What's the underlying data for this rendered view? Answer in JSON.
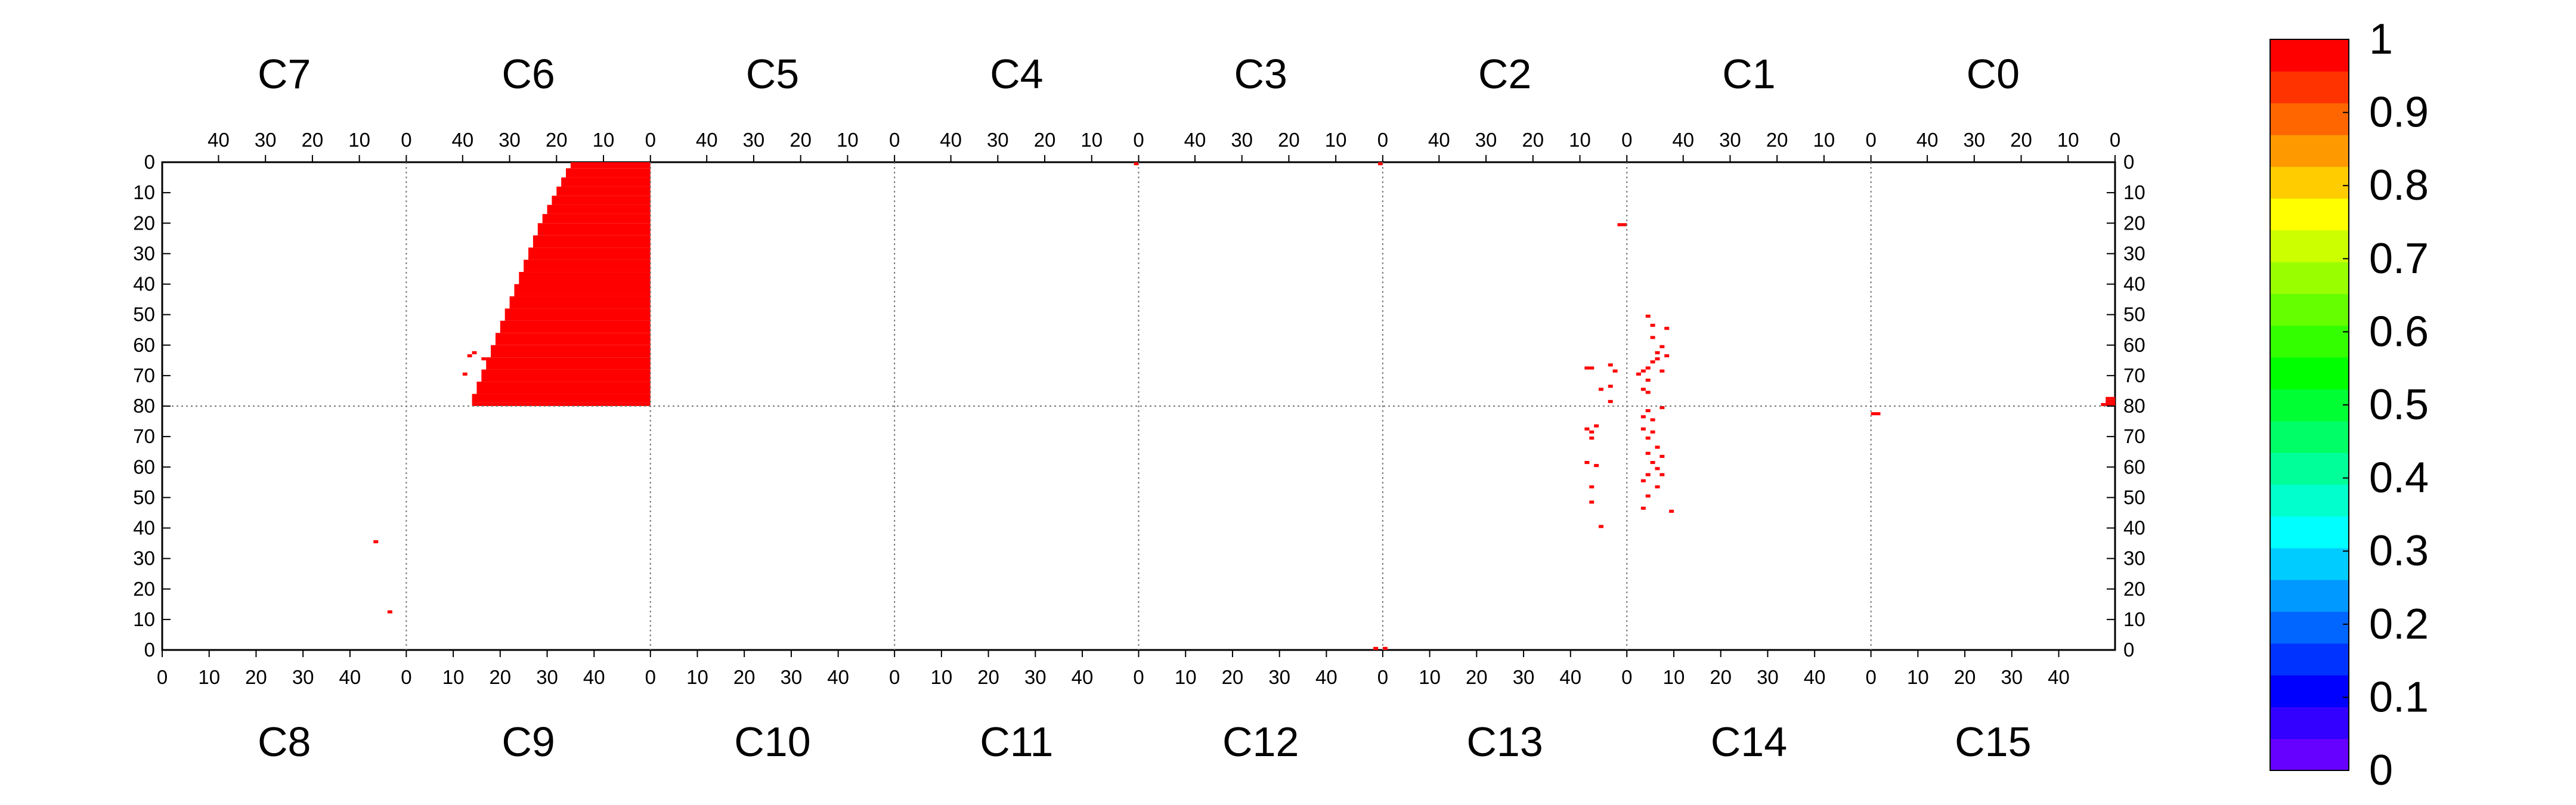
{
  "chart_data": {
    "type": "heatmap",
    "top_chip_labels": [
      "C7",
      "C6",
      "C5",
      "C4",
      "C3",
      "C2",
      "C1",
      "C0"
    ],
    "bottom_chip_labels": [
      "C8",
      "C9",
      "C10",
      "C11",
      "C12",
      "C13",
      "C14",
      "C15"
    ],
    "top_tick_labels": [
      "40",
      "30",
      "20",
      "10",
      "0"
    ],
    "bottom_tick_labels": [
      "0",
      "10",
      "20",
      "30",
      "40"
    ],
    "y_tick_labels_top_half": [
      "0",
      "10",
      "20",
      "30",
      "40",
      "50",
      "60",
      "70",
      "80"
    ],
    "y_tick_labels_bottom_half": [
      "70",
      "60",
      "50",
      "40",
      "30",
      "20",
      "10",
      "0"
    ],
    "chip_columns": 52,
    "chip_rows": 80,
    "x_range_per_chip": [
      0,
      52
    ],
    "y_range_per_half": [
      0,
      80
    ],
    "grid": "dotted chip boundaries",
    "colorbar": {
      "min": 0,
      "max": 1,
      "tick_labels": [
        "0",
        "0.1",
        "0.2",
        "0.3",
        "0.4",
        "0.5",
        "0.6",
        "0.7",
        "0.8",
        "0.9",
        "1"
      ],
      "colors": [
        "#6600ff",
        "#3300ff",
        "#0000ff",
        "#0033ff",
        "#0066ff",
        "#0099ff",
        "#00ccff",
        "#00ffff",
        "#00ffcc",
        "#00ff99",
        "#00ff66",
        "#00ff33",
        "#00ff00",
        "#33ff00",
        "#66ff00",
        "#99ff00",
        "#ccff00",
        "#ffff00",
        "#ffcc00",
        "#ff9900",
        "#ff6600",
        "#ff3300",
        "#ff0000"
      ],
      "placement": "right"
    },
    "cell_color": "#ff0000",
    "cells": [
      {
        "chip": "C6",
        "half": "top",
        "col": 1,
        "row": 3,
        "value": 1
      },
      {
        "chip": "C4",
        "half": "top",
        "col": 0,
        "row": 0,
        "value": 1
      },
      {
        "chip": "C3",
        "half": "top",
        "col": 0,
        "row": 0,
        "value": 1
      },
      {
        "chip": "C2",
        "half": "top",
        "col": 0,
        "row": 20,
        "value": 1
      },
      {
        "chip": "C2",
        "half": "top",
        "col": 1,
        "row": 20,
        "value": 1
      },
      {
        "chip": "C2",
        "half": "top",
        "col": 8,
        "row": 67
      },
      {
        "chip": "C2",
        "half": "top",
        "col": 7,
        "row": 67
      },
      {
        "chip": "C2",
        "half": "top",
        "col": 3,
        "row": 66
      },
      {
        "chip": "C2",
        "half": "top",
        "col": 2,
        "row": 68
      },
      {
        "chip": "C2",
        "half": "top",
        "col": 3,
        "row": 73
      },
      {
        "chip": "C2",
        "half": "top",
        "col": 5,
        "row": 74
      },
      {
        "chip": "C2",
        "half": "top",
        "col": 3,
        "row": 78
      },
      {
        "chip": "C1",
        "half": "top",
        "col": 47,
        "row": 50
      },
      {
        "chip": "C1",
        "half": "top",
        "col": 46,
        "row": 53
      },
      {
        "chip": "C1",
        "half": "top",
        "col": 43,
        "row": 54
      },
      {
        "chip": "C1",
        "half": "top",
        "col": 46,
        "row": 57
      },
      {
        "chip": "C1",
        "half": "top",
        "col": 44,
        "row": 60
      },
      {
        "chip": "C1",
        "half": "top",
        "col": 45,
        "row": 62
      },
      {
        "chip": "C1",
        "half": "top",
        "col": 43,
        "row": 63
      },
      {
        "chip": "C1",
        "half": "top",
        "col": 45,
        "row": 64
      },
      {
        "chip": "C1",
        "half": "top",
        "col": 46,
        "row": 65
      },
      {
        "chip": "C1",
        "half": "top",
        "col": 47,
        "row": 67
      },
      {
        "chip": "C1",
        "half": "top",
        "col": 44,
        "row": 68
      },
      {
        "chip": "C1",
        "half": "top",
        "col": 48,
        "row": 68
      },
      {
        "chip": "C1",
        "half": "top",
        "col": 49,
        "row": 69
      },
      {
        "chip": "C1",
        "half": "top",
        "col": 47,
        "row": 71
      },
      {
        "chip": "C1",
        "half": "top",
        "col": 48,
        "row": 74
      },
      {
        "chip": "C1",
        "half": "top",
        "col": 47,
        "row": 75
      },
      {
        "chip": "C0",
        "half": "top",
        "col": 0,
        "row": 77,
        "value": 1
      },
      {
        "chip": "C0",
        "half": "top",
        "col": 1,
        "row": 77,
        "value": 1
      },
      {
        "chip": "C0",
        "half": "top",
        "col": 0,
        "row": 78,
        "value": 1
      },
      {
        "chip": "C0",
        "half": "top",
        "col": 1,
        "row": 78,
        "value": 1
      },
      {
        "chip": "C0",
        "half": "top",
        "col": 0,
        "row": 79,
        "value": 1
      },
      {
        "chip": "C0",
        "half": "top",
        "col": 1,
        "row": 79,
        "value": 1
      },
      {
        "chip": "C0",
        "half": "top",
        "col": 2,
        "row": 79,
        "value": 1
      },
      {
        "chip": "C8",
        "half": "bottom",
        "col": 45,
        "row": 35,
        "value": 1
      },
      {
        "chip": "C8",
        "half": "bottom",
        "col": 48,
        "row": 12,
        "value": 1
      },
      {
        "chip": "C12",
        "half": "bottom",
        "col": 50,
        "row": 0,
        "value": 1
      },
      {
        "chip": "C13",
        "half": "bottom",
        "col": 0,
        "row": 0,
        "value": 1
      },
      {
        "chip": "C13",
        "half": "bottom",
        "col": 43,
        "row": 72,
        "value": 1
      },
      {
        "chip": "C13",
        "half": "bottom",
        "col": 45,
        "row": 73,
        "value": 1
      },
      {
        "chip": "C13",
        "half": "bottom",
        "col": 44,
        "row": 71,
        "value": 1
      },
      {
        "chip": "C13",
        "half": "bottom",
        "col": 44,
        "row": 69,
        "value": 1
      },
      {
        "chip": "C13",
        "half": "bottom",
        "col": 43,
        "row": 61,
        "value": 1
      },
      {
        "chip": "C13",
        "half": "bottom",
        "col": 45,
        "row": 60,
        "value": 1
      },
      {
        "chip": "C13",
        "half": "bottom",
        "col": 44,
        "row": 53,
        "value": 1
      },
      {
        "chip": "C13",
        "half": "bottom",
        "col": 44,
        "row": 48,
        "value": 1
      },
      {
        "chip": "C13",
        "half": "bottom",
        "col": 46,
        "row": 40,
        "value": 1
      },
      {
        "chip": "C14",
        "half": "bottom",
        "col": 4,
        "row": 78,
        "value": 1
      },
      {
        "chip": "C14",
        "half": "bottom",
        "col": 3,
        "row": 76,
        "value": 1
      },
      {
        "chip": "C14",
        "half": "bottom",
        "col": 7,
        "row": 79,
        "value": 1
      },
      {
        "chip": "C14",
        "half": "bottom",
        "col": 5,
        "row": 75,
        "value": 1
      },
      {
        "chip": "C14",
        "half": "bottom",
        "col": 3,
        "row": 72,
        "value": 1
      },
      {
        "chip": "C14",
        "half": "bottom",
        "col": 5,
        "row": 71,
        "value": 1
      },
      {
        "chip": "C14",
        "half": "bottom",
        "col": 4,
        "row": 69,
        "value": 1
      },
      {
        "chip": "C14",
        "half": "bottom",
        "col": 6,
        "row": 66,
        "value": 1
      },
      {
        "chip": "C14",
        "half": "bottom",
        "col": 4,
        "row": 64,
        "value": 1
      },
      {
        "chip": "C14",
        "half": "bottom",
        "col": 7,
        "row": 63,
        "value": 1
      },
      {
        "chip": "C14",
        "half": "bottom",
        "col": 5,
        "row": 61,
        "value": 1
      },
      {
        "chip": "C14",
        "half": "bottom",
        "col": 6,
        "row": 59,
        "value": 1
      },
      {
        "chip": "C14",
        "half": "bottom",
        "col": 4,
        "row": 57,
        "value": 1
      },
      {
        "chip": "C14",
        "half": "bottom",
        "col": 7,
        "row": 57,
        "value": 1
      },
      {
        "chip": "C14",
        "half": "bottom",
        "col": 3,
        "row": 55,
        "value": 1
      },
      {
        "chip": "C14",
        "half": "bottom",
        "col": 6,
        "row": 53,
        "value": 1
      },
      {
        "chip": "C14",
        "half": "bottom",
        "col": 4,
        "row": 50,
        "value": 1
      },
      {
        "chip": "C14",
        "half": "bottom",
        "col": 3,
        "row": 46,
        "value": 1
      },
      {
        "chip": "C14",
        "half": "bottom",
        "col": 9,
        "row": 45,
        "value": 1
      },
      {
        "chip": "C15",
        "half": "bottom",
        "col": 0,
        "row": 77,
        "value": 1
      },
      {
        "chip": "C15",
        "half": "bottom",
        "col": 1,
        "row": 77,
        "value": 1
      }
    ],
    "filled_region": {
      "chip": "C6",
      "half": "top",
      "value": 1,
      "description": "staircase fill, columns 0 to edge per row",
      "row_edges": [
        [
          0,
          16
        ],
        [
          2,
          17
        ],
        [
          5,
          18
        ],
        [
          8,
          19
        ],
        [
          11,
          20
        ],
        [
          14,
          21
        ],
        [
          17,
          22
        ],
        [
          20,
          23
        ],
        [
          24,
          24
        ],
        [
          28,
          25
        ],
        [
          32,
          26
        ],
        [
          36,
          27
        ],
        [
          40,
          28
        ],
        [
          44,
          29
        ],
        [
          48,
          30
        ],
        [
          52,
          31
        ],
        [
          56,
          32
        ],
        [
          60,
          33
        ],
        [
          64,
          34
        ],
        [
          68,
          35
        ],
        [
          72,
          36
        ],
        [
          76,
          37
        ],
        [
          79,
          37
        ]
      ]
    }
  }
}
